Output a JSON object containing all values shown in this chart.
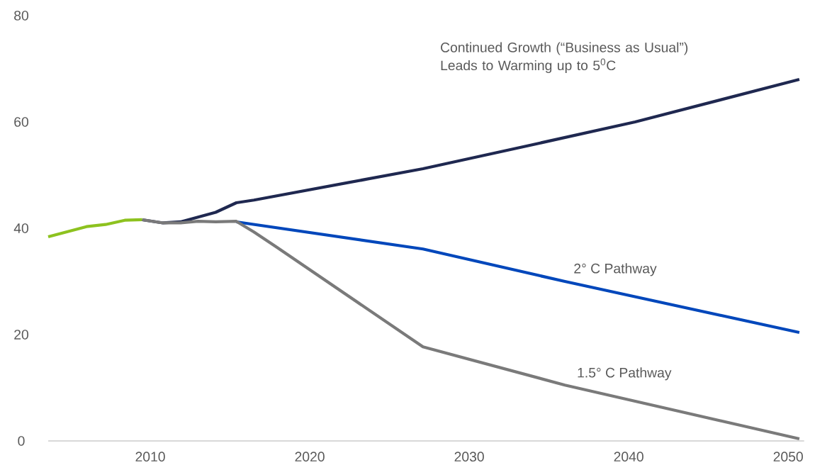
{
  "chart_data": {
    "type": "line",
    "xlim": [
      2003.6,
      2051
    ],
    "ylim": [
      0,
      80
    ],
    "xticks": [
      2010,
      2020,
      2030,
      2040,
      2050
    ],
    "yticks": [
      0,
      20,
      40,
      60,
      80
    ],
    "grid": false,
    "marker": "none",
    "line_style": "solid",
    "series": [
      {
        "color": "#8dc21f",
        "x": [
          2003.6,
          2006.0,
          2007.2,
          2008.4,
          2009.5
        ],
        "values": [
          38.4,
          40.3,
          40.7,
          41.5,
          41.6
        ]
      },
      {
        "name": "Continued Growth (“Business as Usual”) Leads to Warming up to 5$^{0}$C",
        "color": "#1f2850",
        "x": [
          2009.5,
          2010.8,
          2011.9,
          2014.1,
          2015.4,
          2016.5,
          2027.1,
          2033.8,
          2040.4,
          2050.7
        ],
        "values": [
          41.6,
          41.0,
          41.2,
          43.0,
          44.8,
          45.3,
          51.2,
          55.6,
          60.0,
          68.0
        ]
      },
      {
        "name": "2° C Pathway",
        "color": "#0047bb",
        "x": [
          2015.4,
          2027.1,
          2036.0,
          2050.7
        ],
        "values": [
          41.2,
          36.1,
          30.0,
          20.4
        ]
      },
      {
        "name": "1.5° C Pathway",
        "color": "#7a7a7a",
        "x": [
          2009.5,
          2010.8,
          2011.9,
          2013.0,
          2014.1,
          2015.4,
          2016.5,
          2017.9,
          2027.1,
          2036.0,
          2050.7
        ],
        "values": [
          41.6,
          41.0,
          41.0,
          41.3,
          41.2,
          41.3,
          39.3,
          36.5,
          17.7,
          10.5,
          0.4
        ]
      }
    ]
  }
}
